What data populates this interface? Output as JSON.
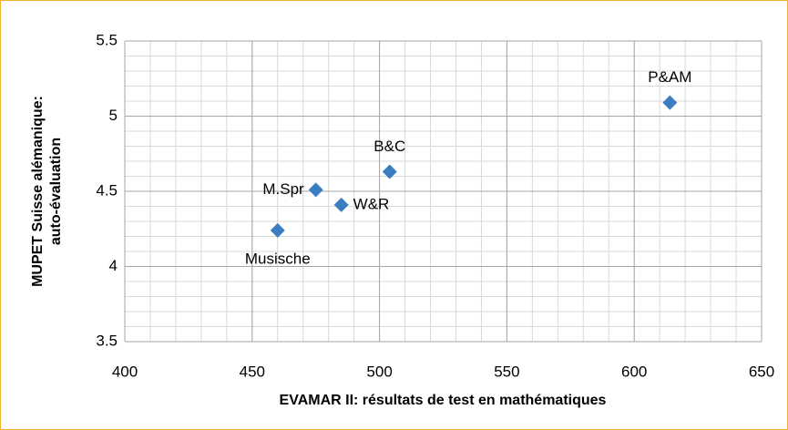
{
  "chart_data": {
    "type": "scatter",
    "xlabel": "EVAMAR II:  résultats de test en mathématiques",
    "ylabel": [
      "MUPET Suisse alémanique:",
      "auto-évaluation"
    ],
    "series": [
      {
        "name": null,
        "color": "#3a7dc0",
        "x": [
          460,
          475,
          485,
          504,
          614
        ],
        "values": [
          4.24,
          4.51,
          4.41,
          4.63,
          5.09
        ],
        "point_labels": [
          "Musische",
          "M.Spr",
          "W&R",
          "B&C",
          "P&AM"
        ],
        "label_positions": [
          "below",
          "left",
          "right",
          "above",
          "above"
        ]
      }
    ],
    "xlim": [
      400,
      650
    ],
    "xticks": [
      400,
      450,
      500,
      550,
      600,
      650
    ],
    "ylim": [
      3.5,
      5.5
    ],
    "yticks": [
      3.5,
      4,
      4.5,
      5,
      5.5
    ],
    "grid": true,
    "minor_grid": {
      "x": 10,
      "y": 0.1
    },
    "border_color": "#f0b030"
  }
}
